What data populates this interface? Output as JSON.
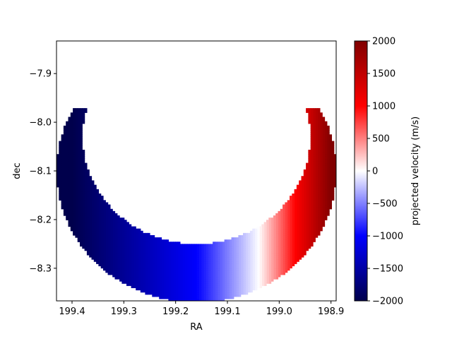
{
  "chart_data": {
    "type": "heatmap",
    "title": "",
    "xlabel": "RA",
    "ylabel": "dec",
    "xlim": [
      199.43,
      198.89
    ],
    "ylim": [
      -8.367,
      -7.833
    ],
    "x_inverted": true,
    "x_ticks": [
      199.4,
      199.3,
      199.2,
      199.1,
      199.0,
      198.9
    ],
    "x_tick_labels": [
      "199.4",
      "199.3",
      "199.2",
      "199.1",
      "199.0",
      "198.9"
    ],
    "y_ticks": [
      -7.9,
      -8.0,
      -8.1,
      -8.2,
      -8.3
    ],
    "y_tick_labels": [
      "−7.9",
      "−8.0",
      "−8.1",
      "−8.2",
      "−8.3"
    ],
    "grid": false,
    "shape": {
      "kind": "crescent",
      "center_ra": 199.16,
      "center_dec": -8.1,
      "outer_radius_deg": 0.27,
      "inner_radius_deg": 0.2
    },
    "colorbar": {
      "label": "projected velocity (m/s)",
      "min": -2000,
      "max": 2000,
      "ticks": [
        2000,
        1500,
        1000,
        500,
        0,
        -500,
        -1000,
        -1500,
        -2000
      ],
      "tick_labels": [
        "2000",
        "1500",
        "1000",
        "500",
        "0",
        "−500",
        "−1000",
        "−1500",
        "−2000"
      ],
      "colormap": "seismic",
      "colors": [
        "#00004c",
        "#0000ff",
        "#ffffff",
        "#ff0000",
        "#800000"
      ]
    },
    "velocity_model": {
      "at_ra_199.40": -2000,
      "at_ra_199.16": -1000,
      "at_ra_199.04": 0,
      "at_ra_198.90": 2000
    }
  }
}
